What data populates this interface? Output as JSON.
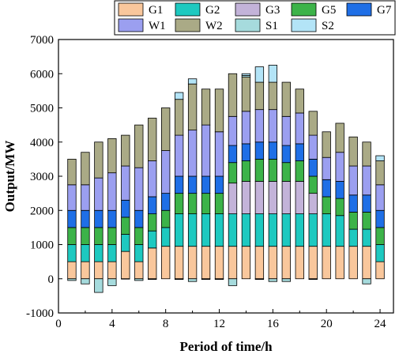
{
  "chart_data": {
    "type": "bar",
    "stacked": true,
    "xlabel": "Period of time/h",
    "ylabel": "Output/MW",
    "xlim": [
      0,
      25
    ],
    "ylim": [
      -1000,
      7000
    ],
    "xticks": [
      0,
      4,
      8,
      12,
      16,
      20,
      24
    ],
    "yticks": [
      -1000,
      0,
      1000,
      2000,
      3000,
      4000,
      5000,
      6000,
      7000
    ],
    "legend_position": "top",
    "categories": [
      1,
      2,
      3,
      4,
      5,
      6,
      7,
      8,
      9,
      10,
      11,
      12,
      13,
      14,
      15,
      16,
      17,
      18,
      19,
      20,
      21,
      22,
      23,
      24
    ],
    "series": [
      {
        "name": "G1",
        "color": "#f9c79c",
        "values": [
          500,
          500,
          500,
          500,
          800,
          500,
          900,
          950,
          950,
          950,
          950,
          950,
          950,
          950,
          950,
          950,
          950,
          950,
          950,
          950,
          950,
          950,
          950,
          500
        ]
      },
      {
        "name": "G2",
        "color": "#1ec9c0",
        "values": [
          500,
          500,
          500,
          500,
          500,
          500,
          500,
          550,
          950,
          950,
          950,
          950,
          950,
          950,
          950,
          950,
          950,
          950,
          950,
          950,
          900,
          500,
          500,
          500
        ]
      },
      {
        "name": "G3",
        "color": "#c3b3d9",
        "values": [
          0,
          0,
          0,
          0,
          0,
          0,
          0,
          0,
          0,
          0,
          0,
          0,
          900,
          950,
          950,
          950,
          950,
          950,
          600,
          0,
          0,
          0,
          0,
          0
        ]
      },
      {
        "name": "G5",
        "color": "#3cb349",
        "values": [
          500,
          500,
          500,
          500,
          500,
          500,
          500,
          500,
          600,
          600,
          600,
          600,
          600,
          600,
          650,
          650,
          550,
          600,
          500,
          500,
          500,
          500,
          500,
          500
        ]
      },
      {
        "name": "G7",
        "color": "#1f6fe6",
        "values": [
          500,
          500,
          500,
          500,
          500,
          500,
          500,
          500,
          500,
          500,
          500,
          500,
          500,
          500,
          500,
          500,
          500,
          500,
          500,
          500,
          500,
          500,
          500,
          500
        ]
      },
      {
        "name": "W1",
        "color": "#9b9ff0",
        "values": [
          750,
          750,
          950,
          1100,
          1000,
          1250,
          1050,
          1250,
          1200,
          1350,
          1500,
          1300,
          850,
          950,
          950,
          950,
          850,
          900,
          700,
          650,
          850,
          850,
          850,
          750
        ]
      },
      {
        "name": "W2",
        "color": "#aaaa86",
        "values": [
          750,
          950,
          1050,
          1000,
          900,
          1250,
          1250,
          1250,
          1050,
          1350,
          1050,
          1250,
          1250,
          1000,
          800,
          800,
          1000,
          700,
          700,
          750,
          850,
          850,
          700,
          700
        ]
      },
      {
        "name": "S1",
        "color": "#a6dbdd",
        "values": [
          -50,
          -150,
          -400,
          -200,
          -10,
          -50,
          -20,
          0,
          -20,
          -80,
          -20,
          -20,
          -200,
          50,
          -20,
          -80,
          -80,
          0,
          -20,
          0,
          0,
          0,
          -150,
          0
        ]
      },
      {
        "name": "S2",
        "color": "#b3e4f7",
        "values": [
          0,
          0,
          0,
          0,
          0,
          0,
          0,
          0,
          200,
          150,
          0,
          0,
          0,
          50,
          450,
          500,
          0,
          0,
          0,
          0,
          0,
          0,
          0,
          150
        ]
      }
    ]
  }
}
